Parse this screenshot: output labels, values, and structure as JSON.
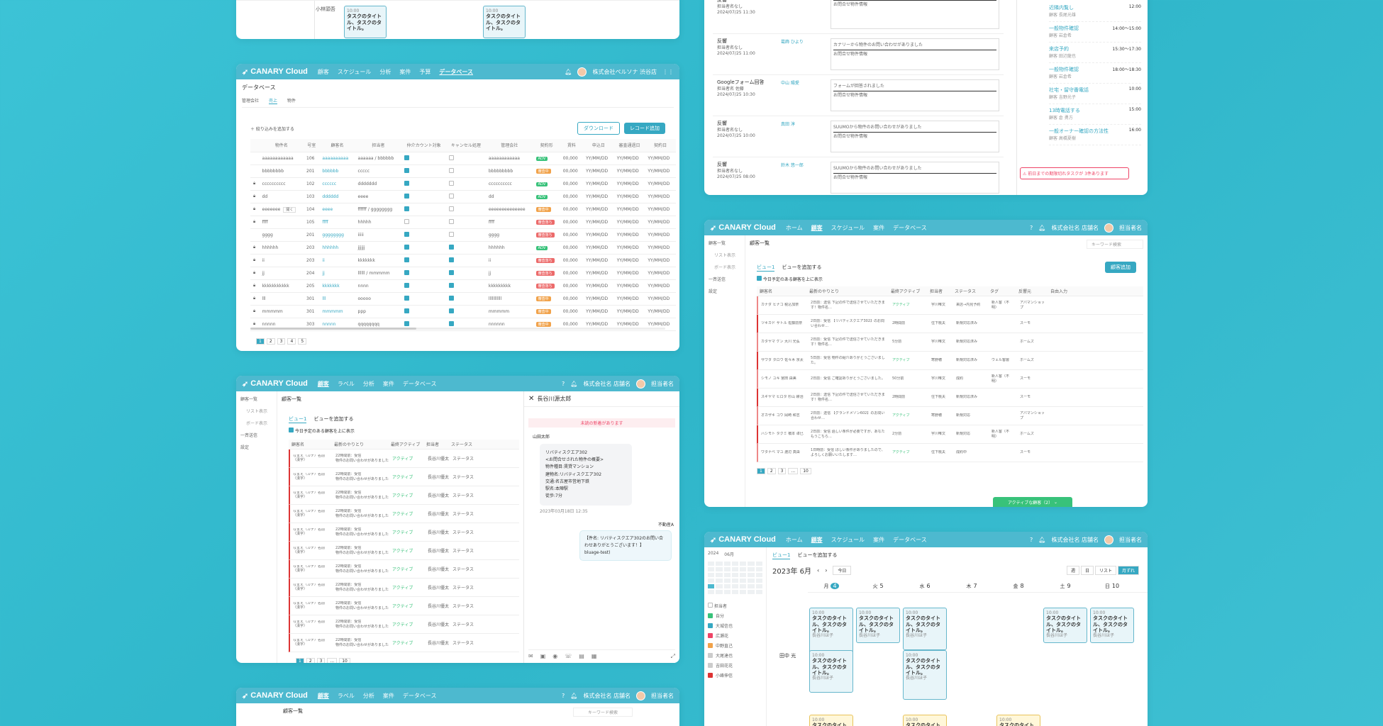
{
  "brand": "CANARY Cloud",
  "company": "株式会社ペルソナ 渋谷店",
  "company_short": "株式会社名 店舗名",
  "user": "担当者名",
  "nav_db": [
    "顧客",
    "スケジュール",
    "分析",
    "案件",
    "予算",
    "データベース"
  ],
  "nav_customer": [
    "顧客",
    "ラベル",
    "分析",
    "案件",
    "データベース"
  ],
  "nav_home": [
    "ホーム",
    "顧客",
    "スケジュール",
    "案件",
    "データベース"
  ],
  "db": {
    "title": "データベース",
    "tabs": [
      "管理会社",
      "売上",
      "物件"
    ],
    "filter": "＋ 絞り込みを追加する",
    "download": "ダウンロード",
    "add": "レコード追加",
    "columns": [
      "物件名",
      "号室",
      "顧客名",
      "担当者",
      "仲介カウント対象",
      "キャンセル処理",
      "管理会社",
      "契約形",
      "賃料",
      "申込日",
      "審査通過日",
      "契約日"
    ],
    "rows": [
      [
        "aaaaaaaaaaaa",
        "106",
        "aaaaaaaaaa",
        "aaaaaa / bbbbbb",
        "on",
        "off",
        "aaaaaaaaaaaa",
        "ADV",
        "00,000",
        "YY/MM/DD",
        "YY/MM/DD",
        "YY/MM/DD"
      ],
      [
        "bbbbbbbb",
        "201",
        "bbbbbb",
        "ccccc",
        "on",
        "off",
        "bbbbbbbbb",
        "審査中",
        "00,000",
        "YY/MM/DD",
        "YY/MM/DD",
        "YY/MM/DD"
      ],
      [
        "cccccccccc",
        "102",
        "cccccc",
        "ddddddd",
        "on",
        "off",
        "cccccccccc",
        "ADV",
        "00,000",
        "YY/MM/DD",
        "YY/MM/DD",
        "YY/MM/DD"
      ],
      [
        "dd",
        "103",
        "dddddd",
        "eeee",
        "on",
        "off",
        "dd",
        "ADV",
        "00,000",
        "YY/MM/DD",
        "YY/MM/DD",
        "YY/MM/DD"
      ],
      [
        "eeeeeee",
        "104",
        "eeee",
        "ffffff / gggggggg",
        "on",
        "off",
        "eeeeeeeeeeeeee",
        "審査中",
        "00,000",
        "YY/MM/DD",
        "YY/MM/DD",
        "YY/MM/DD"
      ],
      [
        "ffff",
        "105",
        "ffff",
        "hhhhh",
        "off",
        "off",
        "ffff",
        "審査落ち",
        "00,000",
        "YY/MM/DD",
        "YY/MM/DD",
        "YY/MM/DD"
      ],
      [
        "gggg",
        "201",
        "gggggggg",
        "iiiii",
        "on",
        "off",
        "gggg",
        "審査落ち",
        "00,000",
        "YY/MM/DD",
        "YY/MM/DD",
        "YY/MM/DD"
      ],
      [
        "hhhhhh",
        "203",
        "hhhhhh",
        "jjjjjj",
        "on",
        "on",
        "hhhhhh",
        "ADV",
        "00,000",
        "YY/MM/DD",
        "YY/MM/DD",
        "YY/MM/DD"
      ],
      [
        "ii",
        "203",
        "ii",
        "kkkkkkk",
        "on",
        "on",
        "ii",
        "審査落ち",
        "00,000",
        "YY/MM/DD",
        "YY/MM/DD",
        "YY/MM/DD"
      ],
      [
        "jj",
        "204",
        "jj",
        "llllll / mmmmm",
        "on",
        "on",
        "jj",
        "審査落ち",
        "00,000",
        "YY/MM/DD",
        "YY/MM/DD",
        "YY/MM/DD"
      ],
      [
        "kkkkkkkkkkk",
        "205",
        "kkkkkkk",
        "nnnn",
        "on",
        "on",
        "kkkkkkkkk",
        "審査落ち",
        "00,000",
        "YY/MM/DD",
        "YY/MM/DD",
        "YY/MM/DD"
      ],
      [
        "lll",
        "301",
        "lll",
        "ooooo",
        "on",
        "on",
        "lllllllllll",
        "審査中",
        "00,000",
        "YY/MM/DD",
        "YY/MM/DD",
        "YY/MM/DD"
      ],
      [
        "mmmmm",
        "301",
        "mmmmm",
        "ppp",
        "on",
        "on",
        "mmmmm",
        "審査中",
        "00,000",
        "YY/MM/DD",
        "YY/MM/DD",
        "YY/MM/DD"
      ],
      [
        "nnnnn",
        "303",
        "nnnnn",
        "qqqqqqqq",
        "on",
        "on",
        "nnnnnn",
        "審査中",
        "00,000",
        "YY/MM/DD",
        "YY/MM/DD",
        "YY/MM/DD"
      ]
    ],
    "tooltip": "開く",
    "pages": [
      "1",
      "2",
      "3",
      "4",
      "5"
    ]
  },
  "customer": {
    "title": "顧客一覧",
    "side": [
      "顧客一覧",
      "リスト表示",
      "ボード表示",
      "一斉送信",
      "設定"
    ],
    "search": "キーワード検索",
    "view": "ビュー1",
    "add_view": "ビューを追加する",
    "check_label": "今日予定のある顧客を上に表示",
    "cols": [
      "顧客名",
      "最新のやりとり",
      "最終アクティブ",
      "担当者",
      "ステータス"
    ],
    "row_name": "なまえ（カナ）名前（漢字）",
    "row_msg": "22時間前：受信",
    "row_msg2": "物件のお問い合わせがありました",
    "row_active": "アクティブ",
    "row_owner": "長谷川優太",
    "row_status": "ステータス",
    "pages": [
      "1",
      "2",
      "3",
      "...",
      "10"
    ]
  },
  "chat": {
    "name": "長谷川源太郎",
    "hint": "未読の新着があります",
    "sender": "山田太郎",
    "lines": [
      "リバティスクエア302",
      "<お問合せされた物件の概要>",
      "物件種目:賃貸マンション",
      "建物名:リバティスクエア302",
      "交通:名古屋市営地下鉄",
      "駅名:本陣駅",
      "徒歩:7分"
    ],
    "time": "2023年03月18日 12:35",
    "reply_who": "不動産A",
    "reply": "【件名: リバティスクエア302のお問い合わせありがとうございます！】",
    "reply2": "bluage-test)",
    "chip": "ダイアログ"
  },
  "feed": {
    "items": [
      {
        "type": "反響",
        "sub": "担当者名なし",
        "date": "2024/07/25 11:30",
        "agent": "",
        "text": ""
      },
      {
        "type": "反響",
        "sub": "担当者名なし",
        "date": "2024/07/25 11:00",
        "agent": "葛飾 ひより",
        "text": "カナリーから物件のお問い合わせがありました"
      },
      {
        "type": "Googleフォーム回答",
        "sub": "担当者名 佐藤",
        "date": "2024/07/25 10:30",
        "agent": "中山 陽愛",
        "text": "フォームが回答されました"
      },
      {
        "type": "反響",
        "sub": "担当者名なし",
        "date": "2024/07/25 10:00",
        "agent": "真田 淳",
        "text": "SUUMOから物件のお問い合わせがありました"
      },
      {
        "type": "反響",
        "sub": "担当者名なし",
        "date": "2024/07/25 08:00",
        "agent": "鈴木 悠一郎",
        "text": "SUUMOから物件のお問い合わせがありました"
      }
    ],
    "field": "お問合せ物件情報",
    "right": [
      {
        "t": "近隣内覧し",
        "s": "顧客 長尾光雄",
        "time": "12:00"
      },
      {
        "t": "一般物件確認",
        "s": "顧客 岩倉希",
        "time": "14:00〜15:00"
      },
      {
        "t": "来店予約",
        "s": "顧客 田辺龍也",
        "time": "15:30〜17:30"
      },
      {
        "t": "一般物件確認",
        "s": "顧客 岩倉希",
        "time": "18:00〜18:30"
      },
      {
        "t": "社宅・留守番電話",
        "s": "顧客 吉野光子",
        "time": "10:00"
      },
      {
        "t": "13時電話する",
        "s": "顧客 倉 勇方",
        "time": "15:00"
      },
      {
        "t": "一般オーナー確認の方法性",
        "s": "顧客 高橋夏樹",
        "time": "16:00"
      }
    ],
    "warn": "前日までの期限切れタスクが 3件あります"
  },
  "list2": {
    "add": "顧客追加",
    "cols": [
      "顧客名",
      "最新のやりとり",
      "最終アクティブ",
      "担当者",
      "ステータス",
      "タグ",
      "反響元",
      "自由入力"
    ],
    "rows": [
      [
        "カナダ ヒナコ 税込加奈",
        "2日前：送信 下記の件で送信させていただきます！物件名…",
        "アクティブ",
        "宇川唯文",
        "来店→内見予約",
        "新人客（不明）",
        "アパマンショップ"
      ],
      [
        "ツキカド サトル 佐藤前奈",
        "2日前：受信 【リバティスクエア302】のお問い合わせ…",
        "2時間前",
        "住下桃夫",
        "新規対応済み",
        "",
        "スーモ"
      ],
      [
        "カタヤマ ケン 大川 光弘",
        "2日前：受信 下記の件で送信させていただきます！物件名…",
        "5分前",
        "宇川唯文",
        "新規対応済み",
        "",
        "ホームズ"
      ],
      [
        "サワタ タロウ 佐々木 京太",
        "5日前：受信 物件の紹介ありがとうございました。",
        "アクティブ",
        "寒野穂",
        "新規対応済み",
        "ウェル客層",
        "ホームズ"
      ],
      [
        "シモノ ユキ 宮田 由美",
        "2日前：受信 ご確認ありがとうございました。",
        "50分前",
        "宇川唯文",
        "成約",
        "新人客（不明）",
        "スーモ"
      ],
      [
        "スギヤマ ヒロタ 杉山 耕治",
        "2日前：送信 下記の件で送信させていただきます！物件名…",
        "2時間前",
        "住下桃夫",
        "新規対応済み",
        "",
        "スーモ"
      ],
      [
        "オカザキ コウ 岡崎 和志",
        "2日前：送信 【グランドメゾン602】のお問い合わせ…",
        "アクティブ",
        "寒野穂",
        "新規対応",
        "",
        "アパマンショップ"
      ],
      [
        "ハシモト タクミ 橋本 卓巳",
        "2日前：受信 過しい条件が必要ですが、あなたもうこちら…",
        "2分前",
        "宇川唯文",
        "新規対応",
        "新人客（不明）",
        "ホームズ"
      ],
      [
        "ワタナベ マユ 渡辺 真由",
        "1日時前：受信 ほしい条件がありましたので、よろしくお願いいたします…",
        "アクティブ",
        "住下桃夫",
        "成約中",
        "",
        "スーモ"
      ]
    ],
    "pages": [
      "1",
      "2",
      "3",
      "...",
      "10"
    ],
    "active_btn": "アクティブな顧客（2）"
  },
  "cal": {
    "year": "2024",
    "month_sel": "06月",
    "title": "2023年 6月",
    "today": "今日",
    "views": [
      "週",
      "日",
      "リスト",
      "月ずれ"
    ],
    "days": [
      [
        "月",
        "4"
      ],
      [
        "火",
        "5"
      ],
      [
        "水",
        "6"
      ],
      [
        "木",
        "7"
      ],
      [
        "金",
        "8"
      ],
      [
        "土",
        "9"
      ],
      [
        "日",
        "10"
      ]
    ],
    "person": "田中 光",
    "assign": "担当者",
    "people": [
      "自分",
      "大城信也",
      "広瀬花",
      "中野直己",
      "大尾達也",
      "吉田花花",
      "小峰伸信"
    ],
    "task_title": "タスクのタイトル、タスクのタイトル。",
    "task_time": "10:00",
    "task_owner": "長谷川ほ子"
  },
  "top_left": {
    "label": "小林頭吾",
    "task_time": "10:00",
    "task_title": "タスクのタイトル、タスクのタイトル。"
  }
}
